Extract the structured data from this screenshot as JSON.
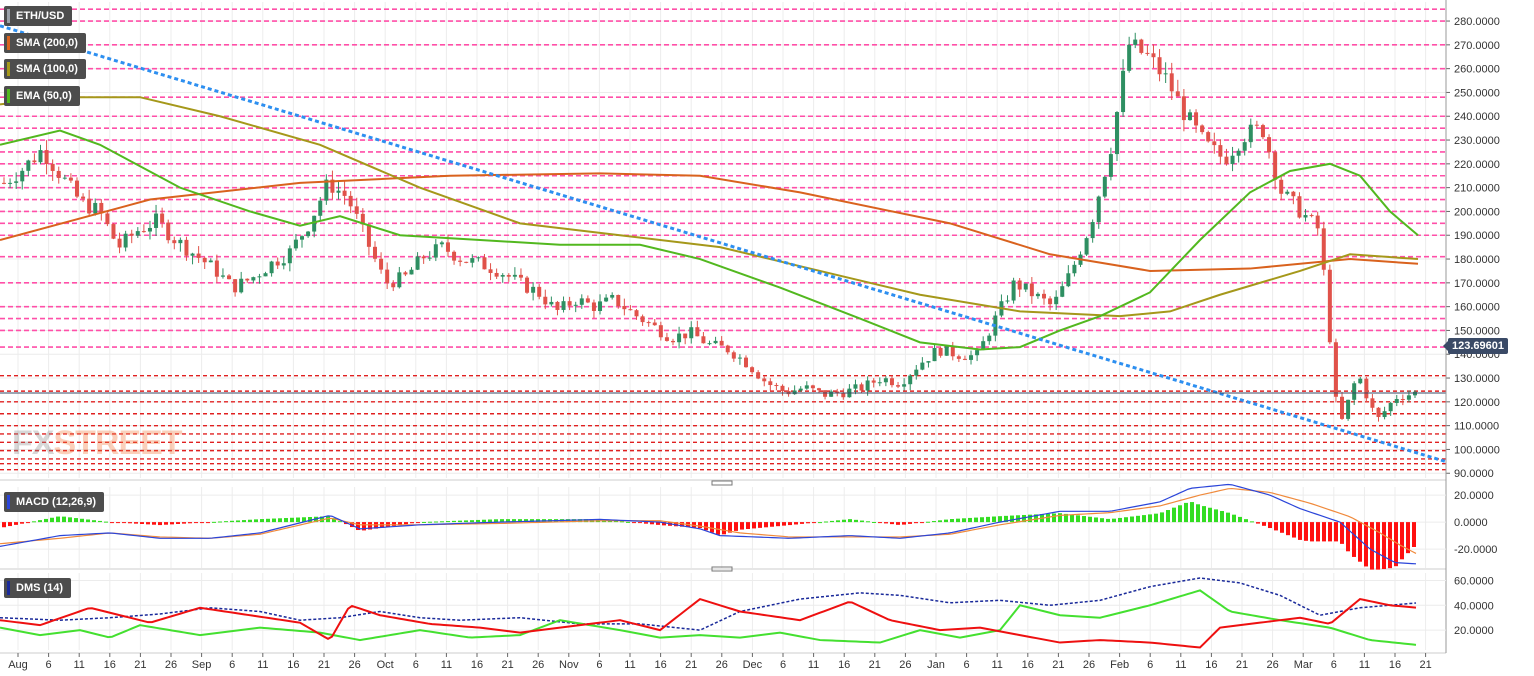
{
  "chart_data": [
    {
      "type": "candlestick",
      "title": "ETH/USD",
      "ylim": [
        88,
        288
      ],
      "y_ticks": [
        "280.0000",
        "270.0000",
        "260.0000",
        "250.0000",
        "240.0000",
        "230.0000",
        "220.0000",
        "210.0000",
        "200.0000",
        "190.0000",
        "180.0000",
        "170.0000",
        "160.0000",
        "150.0000",
        "140.0000",
        "130.0000",
        "120.0000",
        "110.0000",
        "100.0000",
        "90.0000"
      ],
      "x_ticks": [
        "Aug",
        "6",
        "11",
        "16",
        "21",
        "26",
        "Sep",
        "6",
        "11",
        "16",
        "21",
        "26",
        "Oct",
        "6",
        "11",
        "16",
        "21",
        "26",
        "Nov",
        "6",
        "11",
        "16",
        "21",
        "26",
        "Dec",
        "6",
        "11",
        "16",
        "21",
        "26",
        "Jan",
        "6",
        "11",
        "16",
        "21",
        "26",
        "Feb",
        "6",
        "11",
        "16",
        "21",
        "26",
        "Mar",
        "6",
        "11",
        "16",
        "21"
      ],
      "last_price": "123.69601",
      "legend": [
        "ETH/USD",
        "SMA (200,0)",
        "SMA (100,0)",
        "EMA (50,0)"
      ],
      "legend_position": "top-left",
      "close_anchors": [
        212,
        218,
        226,
        215,
        204,
        200,
        185,
        192,
        196,
        188,
        182,
        176,
        168,
        172,
        178,
        183,
        195,
        212,
        206,
        188,
        170,
        172,
        181,
        185,
        180,
        178,
        175,
        170,
        166,
        158,
        163,
        160,
        163,
        157,
        152,
        147,
        149,
        144,
        142,
        136,
        128,
        124,
        126,
        123,
        124,
        126,
        130,
        128,
        136,
        142,
        140,
        139,
        155,
        170,
        165,
        160,
        175,
        195,
        225,
        270,
        265,
        255,
        240,
        228,
        222,
        232,
        235,
        208,
        200,
        192,
        108,
        132,
        112,
        122,
        123.69
      ],
      "horizontal_levels": {
        "resistance_pink": [
          285,
          280,
          270,
          260,
          248,
          240,
          235,
          230,
          225,
          220,
          215,
          210,
          205,
          200,
          195,
          190,
          181,
          170,
          160,
          155,
          150,
          143
        ],
        "support_red": [
          131,
          124.5,
          120,
          115,
          110,
          106.5,
          103,
          99.5,
          96,
          94,
          91.5
        ]
      },
      "series": [
        {
          "name": "SMA (200,0)",
          "color": "#d9621e",
          "points": [
            [
              0,
              188
            ],
            [
              150,
              205
            ],
            [
              300,
              212
            ],
            [
              450,
              215
            ],
            [
              600,
              216
            ],
            [
              700,
              215
            ],
            [
              800,
              208
            ],
            [
              950,
              195
            ],
            [
              1050,
              182
            ],
            [
              1150,
              175
            ],
            [
              1250,
              176
            ],
            [
              1350,
              180
            ],
            [
              1418,
              178
            ]
          ]
        },
        {
          "name": "SMA (100,0)",
          "color": "#a5981a",
          "points": [
            [
              0,
              245
            ],
            [
              60,
              248
            ],
            [
              140,
              248
            ],
            [
              220,
              240
            ],
            [
              320,
              228
            ],
            [
              420,
              210
            ],
            [
              520,
              195
            ],
            [
              620,
              190
            ],
            [
              720,
              185
            ],
            [
              820,
              175
            ],
            [
              920,
              165
            ],
            [
              1020,
              158
            ],
            [
              1120,
              156
            ],
            [
              1170,
              158
            ],
            [
              1220,
              165
            ],
            [
              1300,
              175
            ],
            [
              1350,
              182
            ],
            [
              1418,
              180
            ]
          ]
        },
        {
          "name": "EMA (50,0)",
          "color": "#52b81f",
          "points": [
            [
              0,
              228
            ],
            [
              60,
              234
            ],
            [
              100,
              228
            ],
            [
              180,
              210
            ],
            [
              250,
              200
            ],
            [
              300,
              194
            ],
            [
              340,
              198
            ],
            [
              400,
              190
            ],
            [
              480,
              188
            ],
            [
              560,
              186
            ],
            [
              640,
              186
            ],
            [
              700,
              180
            ],
            [
              780,
              168
            ],
            [
              860,
              155
            ],
            [
              920,
              145
            ],
            [
              980,
              142
            ],
            [
              1020,
              143
            ],
            [
              1060,
              150
            ],
            [
              1100,
              156
            ],
            [
              1150,
              166
            ],
            [
              1200,
              188
            ],
            [
              1250,
              208
            ],
            [
              1290,
              217
            ],
            [
              1330,
              220
            ],
            [
              1360,
              215
            ],
            [
              1390,
              200
            ],
            [
              1418,
              190
            ]
          ]
        },
        {
          "name": "Trendline",
          "color": "#2d8ff0",
          "points": [
            [
              0,
              278
            ],
            [
              1445,
              95
            ]
          ]
        }
      ]
    },
    {
      "type": "macd",
      "title": "MACD (12,26,9)",
      "ylim": [
        -34,
        26
      ],
      "y_ticks": [
        "20.0000",
        "0.0000",
        "-20.0000"
      ],
      "macd_anchors": [
        [
          0,
          -18
        ],
        [
          60,
          -10
        ],
        [
          110,
          -8
        ],
        [
          160,
          -12
        ],
        [
          210,
          -12
        ],
        [
          260,
          -8
        ],
        [
          330,
          5
        ],
        [
          360,
          -5
        ],
        [
          420,
          -2
        ],
        [
          500,
          0
        ],
        [
          600,
          2
        ],
        [
          660,
          0
        ],
        [
          700,
          -5
        ],
        [
          720,
          -10
        ],
        [
          790,
          -12
        ],
        [
          850,
          -10
        ],
        [
          900,
          -12
        ],
        [
          950,
          -8
        ],
        [
          1000,
          0
        ],
        [
          1060,
          8
        ],
        [
          1110,
          8
        ],
        [
          1160,
          15
        ],
        [
          1190,
          25
        ],
        [
          1230,
          28
        ],
        [
          1270,
          20
        ],
        [
          1300,
          10
        ],
        [
          1340,
          0
        ],
        [
          1370,
          -20
        ],
        [
          1395,
          -30
        ],
        [
          1418,
          -31
        ]
      ],
      "signal_anchors": [
        [
          0,
          -16
        ],
        [
          60,
          -12
        ],
        [
          110,
          -8
        ],
        [
          160,
          -11
        ],
        [
          210,
          -12
        ],
        [
          260,
          -9
        ],
        [
          330,
          3
        ],
        [
          360,
          -2
        ],
        [
          420,
          -2
        ],
        [
          500,
          -1
        ],
        [
          600,
          1
        ],
        [
          660,
          1
        ],
        [
          700,
          -3
        ],
        [
          740,
          -8
        ],
        [
          790,
          -11
        ],
        [
          850,
          -11
        ],
        [
          900,
          -11
        ],
        [
          950,
          -9
        ],
        [
          1000,
          -2
        ],
        [
          1060,
          5
        ],
        [
          1110,
          7
        ],
        [
          1160,
          12
        ],
        [
          1200,
          20
        ],
        [
          1230,
          25
        ],
        [
          1270,
          22
        ],
        [
          1310,
          14
        ],
        [
          1350,
          4
        ],
        [
          1380,
          -8
        ],
        [
          1400,
          -17
        ],
        [
          1418,
          -24
        ]
      ]
    },
    {
      "type": "dms",
      "title": "DMS (14)",
      "ylim": [
        4,
        66
      ],
      "y_ticks": [
        "60.0000",
        "40.0000",
        "20.0000"
      ],
      "adx_anchors": [
        [
          0,
          30
        ],
        [
          60,
          28
        ],
        [
          110,
          30
        ],
        [
          160,
          33
        ],
        [
          210,
          38
        ],
        [
          260,
          35
        ],
        [
          300,
          28
        ],
        [
          340,
          30
        ],
        [
          380,
          35
        ],
        [
          420,
          30
        ],
        [
          460,
          28
        ],
        [
          520,
          30
        ],
        [
          580,
          25
        ],
        [
          640,
          25
        ],
        [
          700,
          20
        ],
        [
          740,
          35
        ],
        [
          800,
          45
        ],
        [
          860,
          50
        ],
        [
          900,
          48
        ],
        [
          950,
          42
        ],
        [
          1000,
          44
        ],
        [
          1050,
          40
        ],
        [
          1100,
          44
        ],
        [
          1150,
          55
        ],
        [
          1200,
          62
        ],
        [
          1240,
          58
        ],
        [
          1280,
          48
        ],
        [
          1320,
          32
        ],
        [
          1360,
          38
        ],
        [
          1418,
          42
        ]
      ],
      "plus_di_anchors": [
        [
          0,
          22
        ],
        [
          40,
          16
        ],
        [
          80,
          20
        ],
        [
          110,
          14
        ],
        [
          140,
          24
        ],
        [
          200,
          16
        ],
        [
          260,
          22
        ],
        [
          320,
          18
        ],
        [
          360,
          12
        ],
        [
          420,
          20
        ],
        [
          470,
          14
        ],
        [
          520,
          16
        ],
        [
          560,
          28
        ],
        [
          620,
          20
        ],
        [
          660,
          14
        ],
        [
          700,
          16
        ],
        [
          740,
          14
        ],
        [
          780,
          18
        ],
        [
          820,
          12
        ],
        [
          880,
          10
        ],
        [
          920,
          20
        ],
        [
          960,
          14
        ],
        [
          1000,
          20
        ],
        [
          1020,
          40
        ],
        [
          1060,
          32
        ],
        [
          1100,
          30
        ],
        [
          1150,
          40
        ],
        [
          1200,
          52
        ],
        [
          1230,
          35
        ],
        [
          1280,
          28
        ],
        [
          1330,
          22
        ],
        [
          1370,
          12
        ],
        [
          1418,
          8
        ]
      ],
      "minus_di_anchors": [
        [
          0,
          28
        ],
        [
          40,
          24
        ],
        [
          90,
          38
        ],
        [
          120,
          32
        ],
        [
          150,
          26
        ],
        [
          200,
          38
        ],
        [
          250,
          32
        ],
        [
          300,
          26
        ],
        [
          330,
          12
        ],
        [
          350,
          40
        ],
        [
          380,
          32
        ],
        [
          430,
          25
        ],
        [
          480,
          22
        ],
        [
          520,
          18
        ],
        [
          560,
          22
        ],
        [
          620,
          28
        ],
        [
          660,
          20
        ],
        [
          700,
          45
        ],
        [
          740,
          35
        ],
        [
          800,
          28
        ],
        [
          850,
          43
        ],
        [
          890,
          28
        ],
        [
          940,
          20
        ],
        [
          980,
          22
        ],
        [
          1020,
          16
        ],
        [
          1060,
          10
        ],
        [
          1100,
          12
        ],
        [
          1150,
          10
        ],
        [
          1200,
          6
        ],
        [
          1220,
          22
        ],
        [
          1260,
          26
        ],
        [
          1300,
          30
        ],
        [
          1330,
          25
        ],
        [
          1360,
          45
        ],
        [
          1390,
          40
        ],
        [
          1418,
          38
        ]
      ]
    }
  ],
  "panel_labels": {
    "main": "ETH/USD",
    "sma200": "SMA (200,0)",
    "sma100": "SMA (100,0)",
    "ema50": "EMA (50,0)",
    "macd": "MACD (12,26,9)",
    "dms": "DMS (14)"
  },
  "colors": {
    "up": "#2e8f62",
    "down": "#e0524a",
    "resistance_line": "#ff4fa8",
    "support_line": "#e02020",
    "macd_line": "#2b45d9",
    "signal_line": "#f08a3c",
    "hist_pos": "#33dd22",
    "hist_neg": "#ff1010",
    "adx": "#1a2a9a",
    "plus_di": "#44e030",
    "minus_di": "#ee1010",
    "last_price_bg": "#3a4a66"
  },
  "watermark": {
    "part1": "FX",
    "part2": "STREET"
  }
}
